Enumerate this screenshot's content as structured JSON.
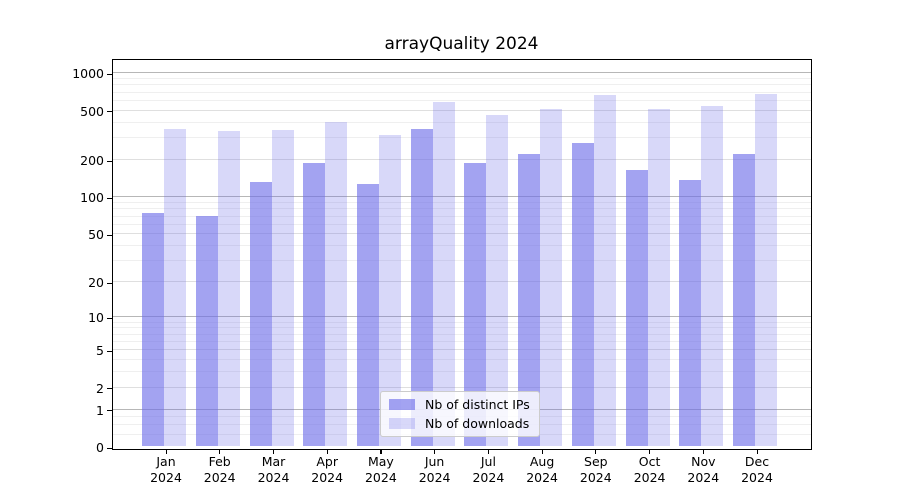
{
  "title": "arrayQuality 2024",
  "chart_data": {
    "type": "bar",
    "title": "arrayQuality 2024",
    "months": [
      "Jan",
      "Feb",
      "Mar",
      "Apr",
      "May",
      "Jun",
      "Jul",
      "Aug",
      "Sep",
      "Oct",
      "Nov",
      "Dec"
    ],
    "year_label": "2024",
    "series": [
      {
        "name": "Nb of distinct IPs",
        "color": "rgba(106,106,232,0.62)",
        "values": [
          74,
          69,
          131,
          188,
          127,
          350,
          188,
          222,
          268,
          163,
          135,
          222
        ]
      },
      {
        "name": "Nb of downloads",
        "color": "rgba(106,106,232,0.26)",
        "values": [
          349,
          339,
          346,
          403,
          314,
          581,
          455,
          506,
          653,
          504,
          542,
          668
        ]
      }
    ],
    "y_ticks": [
      0,
      1,
      2,
      5,
      10,
      20,
      50,
      100,
      200,
      500,
      1000
    ],
    "scale": "log1p",
    "ylim": [
      0,
      1330
    ],
    "grid": {
      "major_dark": [
        1,
        10,
        100,
        1000
      ],
      "major_light": [
        2,
        5,
        20,
        50,
        200,
        500
      ],
      "minor": [
        0.25,
        0.5,
        0.75,
        3,
        4,
        6,
        7,
        8,
        9,
        30,
        40,
        60,
        70,
        80,
        90,
        300,
        400,
        600,
        700,
        800,
        900
      ]
    },
    "grid_colors": {
      "major_dark": "#b7b7b7",
      "major_light": "#dfdfdf",
      "minor": "#efefef"
    },
    "legend_position": "bottom-center"
  }
}
